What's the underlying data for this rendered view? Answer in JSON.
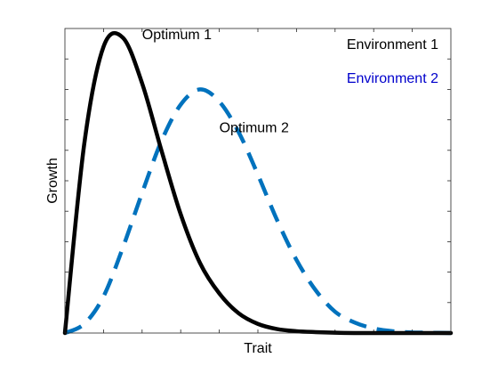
{
  "chart_data": {
    "type": "line",
    "title": "",
    "xlabel": "Trait",
    "ylabel": "Growth",
    "xlim": [
      0,
      10
    ],
    "ylim": [
      0,
      1
    ],
    "x_tick_count": 10,
    "y_tick_count": 10,
    "tick_labels_shown": false,
    "grid": false,
    "series": [
      {
        "color": "#000000",
        "style": "solid",
        "x": [
          0,
          0.5,
          1,
          1.5,
          2,
          2.5,
          3,
          3.5,
          4,
          4.5,
          5,
          5.5,
          6,
          6.5,
          7,
          7.5,
          8,
          8.5,
          9,
          9.5,
          10
        ],
        "y": [
          0,
          0.62,
          0.94,
          0.97,
          0.82,
          0.6,
          0.39,
          0.23,
          0.13,
          0.065,
          0.03,
          0.013,
          0.006,
          0.003,
          0.001,
          0,
          0,
          0,
          0,
          0,
          0
        ]
      },
      {
        "color": "#0072BD",
        "style": "dashed",
        "x": [
          0,
          0.5,
          1,
          1.5,
          2,
          2.5,
          3,
          3.5,
          4,
          4.5,
          5,
          5.5,
          6,
          6.5,
          7,
          7.5,
          8,
          8.5,
          9,
          9.5,
          10
        ],
        "y": [
          0,
          0.03,
          0.12,
          0.28,
          0.46,
          0.63,
          0.75,
          0.8,
          0.76,
          0.66,
          0.52,
          0.37,
          0.24,
          0.14,
          0.07,
          0.035,
          0.015,
          0.006,
          0.002,
          0.001,
          0
        ]
      }
    ],
    "annotations": [
      {
        "text": "Optimum 1",
        "x": 2.0,
        "y": 0.965,
        "color": "#000000"
      },
      {
        "text": "Optimum 2",
        "x": 4.0,
        "y": 0.66,
        "color": "#000000"
      }
    ],
    "legend": {
      "placement": "top-right",
      "entries": [
        {
          "text": "Environment 1",
          "color": "#000000"
        },
        {
          "text": "Environment 2",
          "color": "#0000CC"
        }
      ]
    }
  }
}
